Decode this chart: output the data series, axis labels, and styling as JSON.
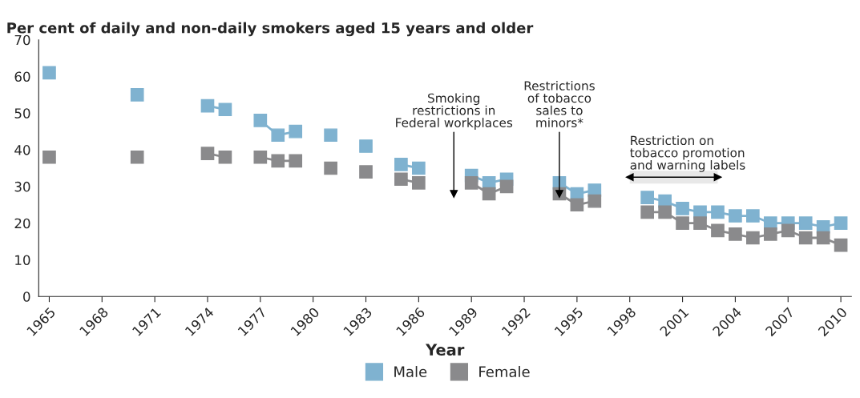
{
  "chart_data": {
    "type": "line",
    "title": "Per cent of daily and non-daily smokers aged 15 years and older",
    "xlabel": "Year",
    "x": [
      1965,
      1966,
      1967,
      1968,
      1969,
      1970,
      1971,
      1972,
      1973,
      1974,
      1975,
      1976,
      1977,
      1978,
      1979,
      1980,
      1981,
      1982,
      1983,
      1984,
      1985,
      1986,
      1987,
      1988,
      1989,
      1990,
      1991,
      1992,
      1993,
      1994,
      1995,
      1996,
      1997,
      1998,
      1999,
      2000,
      2001,
      2002,
      2003,
      2004,
      2005,
      2006,
      2007,
      2008,
      2009,
      2010
    ],
    "series": [
      {
        "name": "Male",
        "color": "#7fb2d0",
        "values": [
          61,
          null,
          null,
          null,
          null,
          55,
          null,
          null,
          null,
          52,
          51,
          null,
          48,
          44,
          45,
          null,
          44,
          null,
          41,
          null,
          36,
          35,
          null,
          null,
          33,
          31,
          32,
          null,
          null,
          31,
          28,
          29,
          null,
          null,
          27,
          26,
          24,
          23,
          23,
          22,
          22,
          20,
          20,
          20,
          19,
          20
        ]
      },
      {
        "name": "Female",
        "color": "#8a8a8c",
        "values": [
          38,
          null,
          null,
          null,
          null,
          38,
          null,
          null,
          null,
          39,
          38,
          null,
          38,
          37,
          37,
          null,
          35,
          null,
          34,
          null,
          32,
          31,
          null,
          null,
          31,
          28,
          30,
          null,
          null,
          28,
          25,
          26,
          null,
          null,
          23,
          23,
          20,
          20,
          18,
          17,
          16,
          17,
          18,
          16,
          16,
          14
        ]
      }
    ],
    "xlim": [
      1964.4,
      2010.6
    ],
    "xticks": [
      1965,
      1968,
      1971,
      1974,
      1977,
      1980,
      1983,
      1986,
      1989,
      1992,
      1995,
      1998,
      2001,
      2004,
      2007,
      2010
    ],
    "ylim": [
      0,
      70
    ],
    "yticks": [
      0,
      10,
      20,
      30,
      40,
      50,
      60,
      70
    ],
    "ref_lines": [
      {
        "axis": "x",
        "value": 1988,
        "label": "Smoking\nrestrictions in\nFederal workplaces"
      },
      {
        "axis": "x",
        "value": 1994,
        "label": "Restrictions\nof tobacco\nsales to\nminors*"
      }
    ],
    "bands": [
      {
        "axis": "x",
        "from": 1998,
        "to": 2003,
        "label": "Restriction on\ntobacco promotion\nand warning labels"
      }
    ],
    "marker": "square",
    "grid": false,
    "legend": "bottom"
  }
}
